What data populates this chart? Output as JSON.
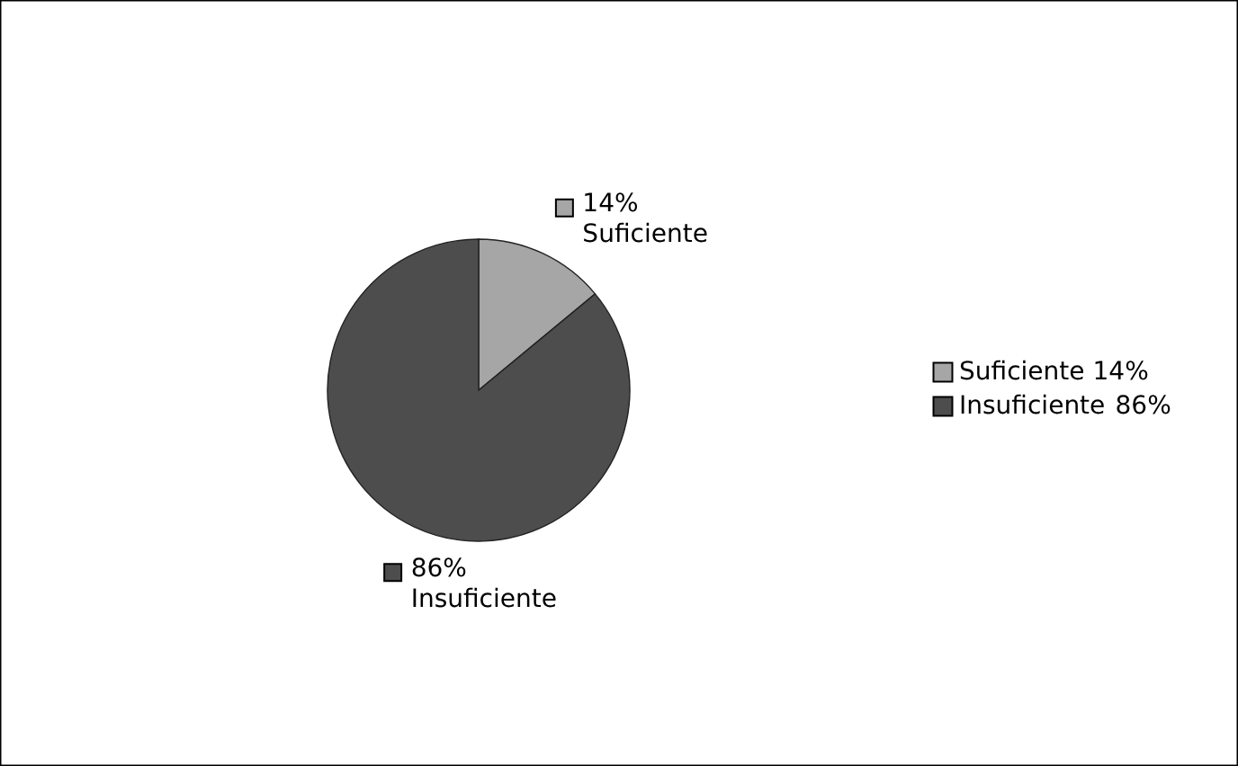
{
  "chart_data": {
    "type": "pie",
    "categories": [
      "Suficiente",
      "Insuficiente"
    ],
    "values": [
      14,
      86
    ],
    "colors": [
      "#a6a6a6",
      "#4d4d4d"
    ],
    "value_labels": [
      "14%",
      "86%"
    ],
    "legend": "right"
  }
}
